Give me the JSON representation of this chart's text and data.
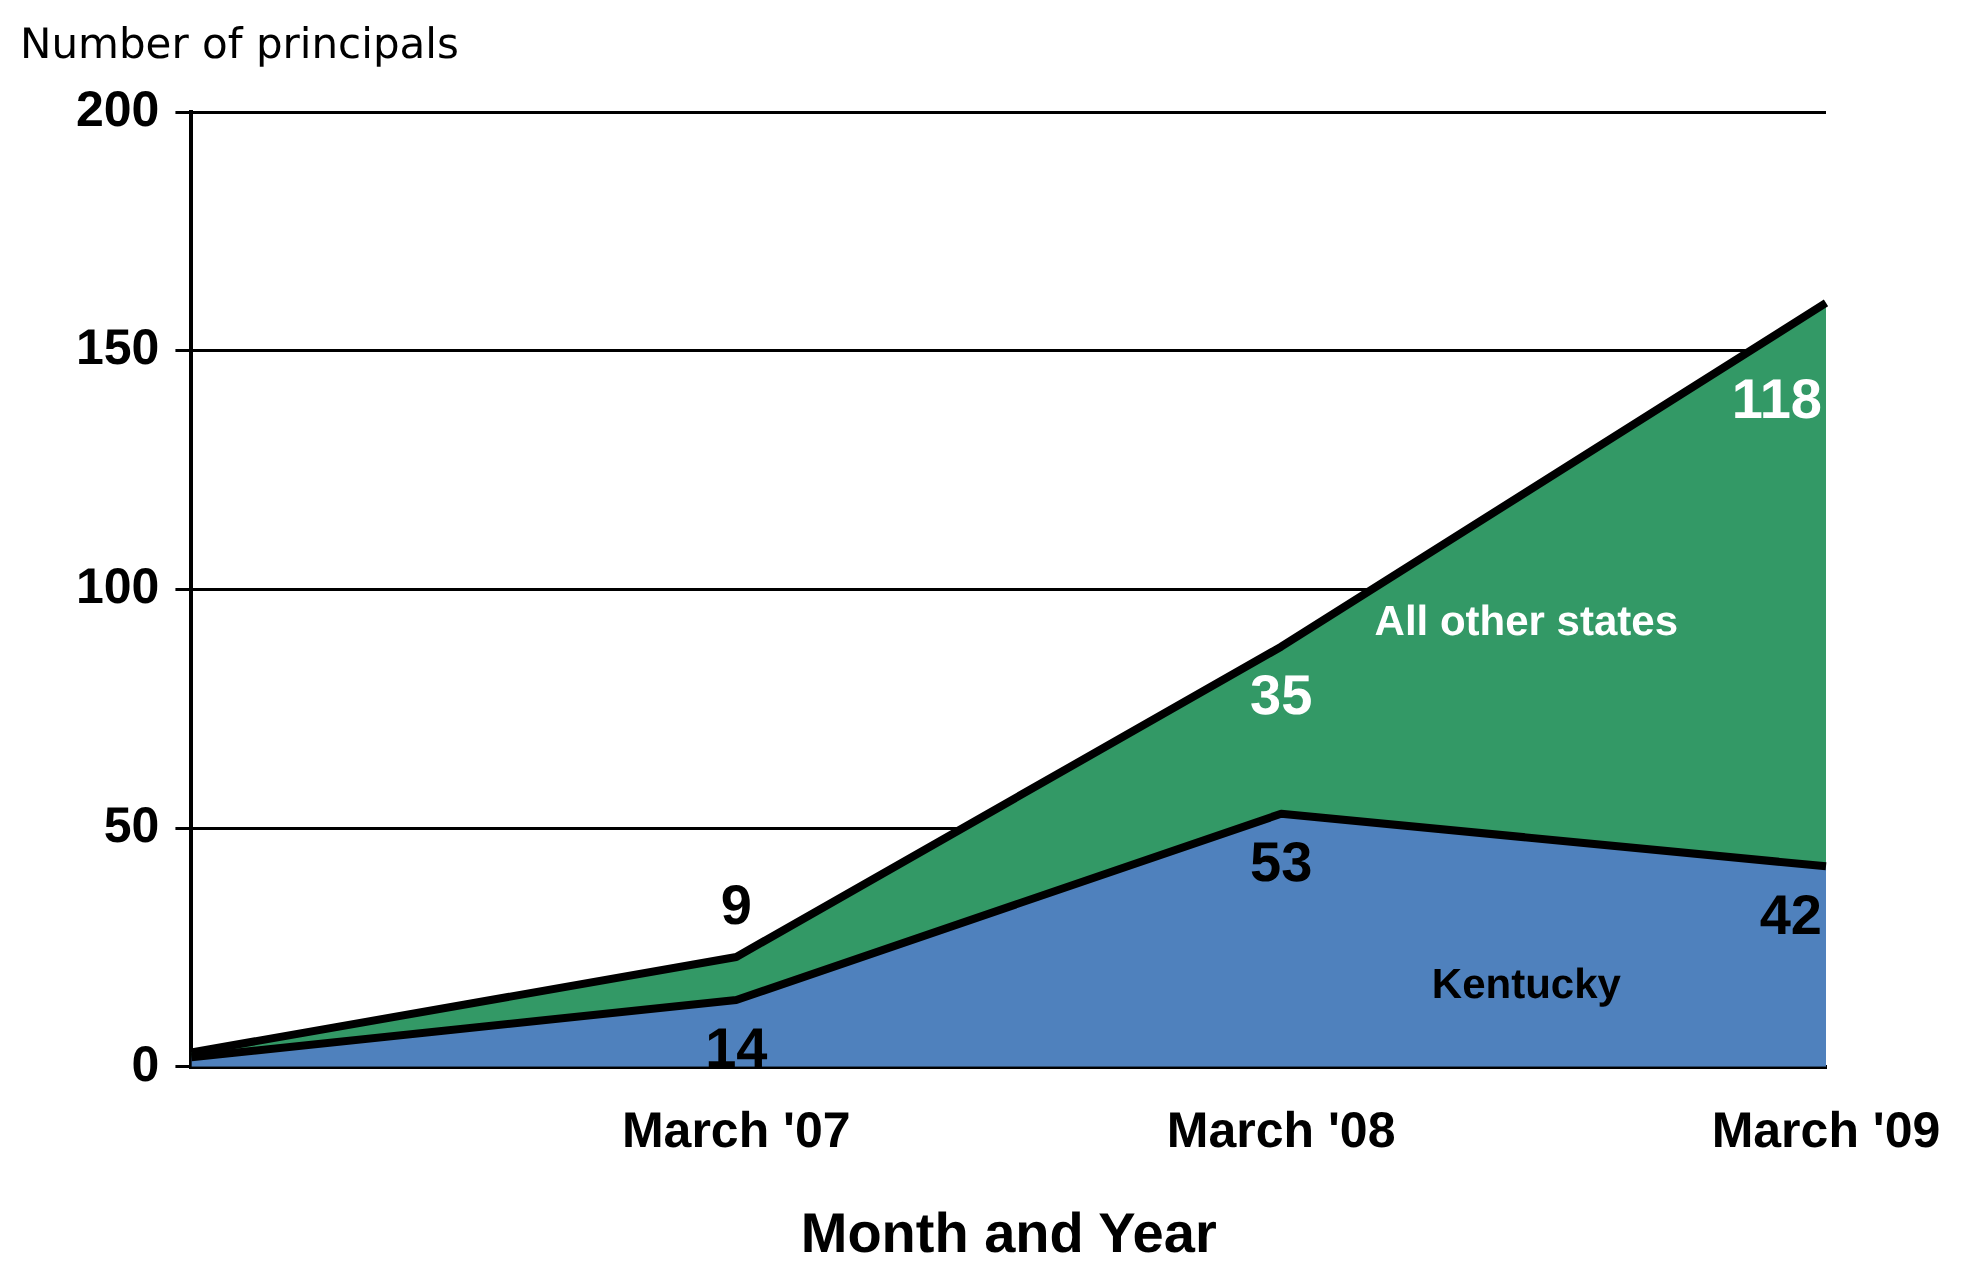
{
  "chart_data": {
    "type": "area",
    "stacked": true,
    "ylabel": "Number of principals",
    "xlabel": "Month and Year",
    "categories": [
      null,
      "March '07",
      "March '08",
      "March '09"
    ],
    "series": [
      {
        "name": "Kentucky",
        "color": "#4f81bd",
        "values": [
          2,
          14,
          53,
          42
        ],
        "value_labels": [
          null,
          "14",
          "53",
          "42"
        ]
      },
      {
        "name": "All other states",
        "color": "#339966",
        "values": [
          1,
          9,
          35,
          118
        ],
        "value_labels": [
          null,
          "9",
          "35",
          "118"
        ]
      }
    ],
    "ylim": [
      0,
      200
    ],
    "yticks": [
      0,
      50,
      100,
      150,
      200
    ],
    "grid": "y",
    "legend": false
  }
}
